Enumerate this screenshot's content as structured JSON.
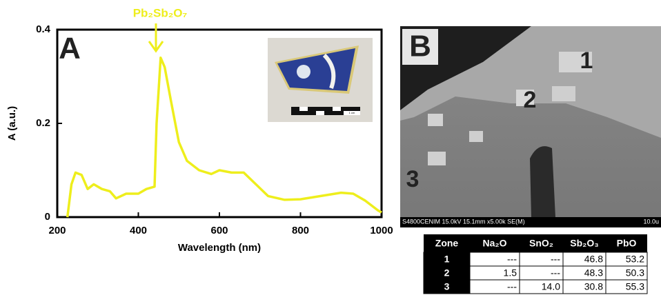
{
  "chart_data": {
    "type": "line",
    "panel_label": "A",
    "annotation": "Pb₂Sb₂O₇",
    "x_label": "Wavelength (nm)",
    "y_label": "A (a.u.)",
    "x": [
      225,
      235,
      245,
      260,
      275,
      290,
      310,
      330,
      345,
      370,
      400,
      420,
      440,
      445,
      455,
      465,
      480,
      500,
      520,
      550,
      580,
      600,
      630,
      660,
      690,
      720,
      760,
      800,
      850,
      900,
      930,
      960,
      990,
      1000
    ],
    "values": [
      0,
      0.07,
      0.095,
      0.09,
      0.06,
      0.07,
      0.06,
      0.055,
      0.04,
      0.05,
      0.05,
      0.06,
      0.065,
      0.2,
      0.34,
      0.32,
      0.25,
      0.16,
      0.12,
      0.1,
      0.092,
      0.1,
      0.095,
      0.095,
      0.07,
      0.045,
      0.037,
      0.038,
      0.045,
      0.052,
      0.05,
      0.035,
      0.015,
      0.01
    ],
    "color": "#eeee1c",
    "xlim": [
      200,
      1000
    ],
    "xticks": [
      200,
      400,
      600,
      800,
      1000
    ],
    "ylim": [
      0,
      0.4
    ],
    "yticks": [
      0,
      0.2,
      0.4
    ],
    "inset_scale_label": "1 cm"
  },
  "panel_b": {
    "panel_label": "B",
    "zones": [
      "1",
      "2",
      "3"
    ],
    "info_bar": "S4800CENIM 15.0kV 15.1mm x5.00k SE(M)",
    "scale_label": "10.0u"
  },
  "table": {
    "header": [
      "Zone",
      "Na₂O",
      "SnO₂",
      "Sb₂O₃",
      "PbO"
    ],
    "rows": [
      [
        "1",
        "---",
        "---",
        "46.8",
        "53.2"
      ],
      [
        "2",
        "1.5",
        "---",
        "48.3",
        "50.3"
      ],
      [
        "3",
        "---",
        "14.0",
        "30.8",
        "55.3"
      ]
    ]
  }
}
